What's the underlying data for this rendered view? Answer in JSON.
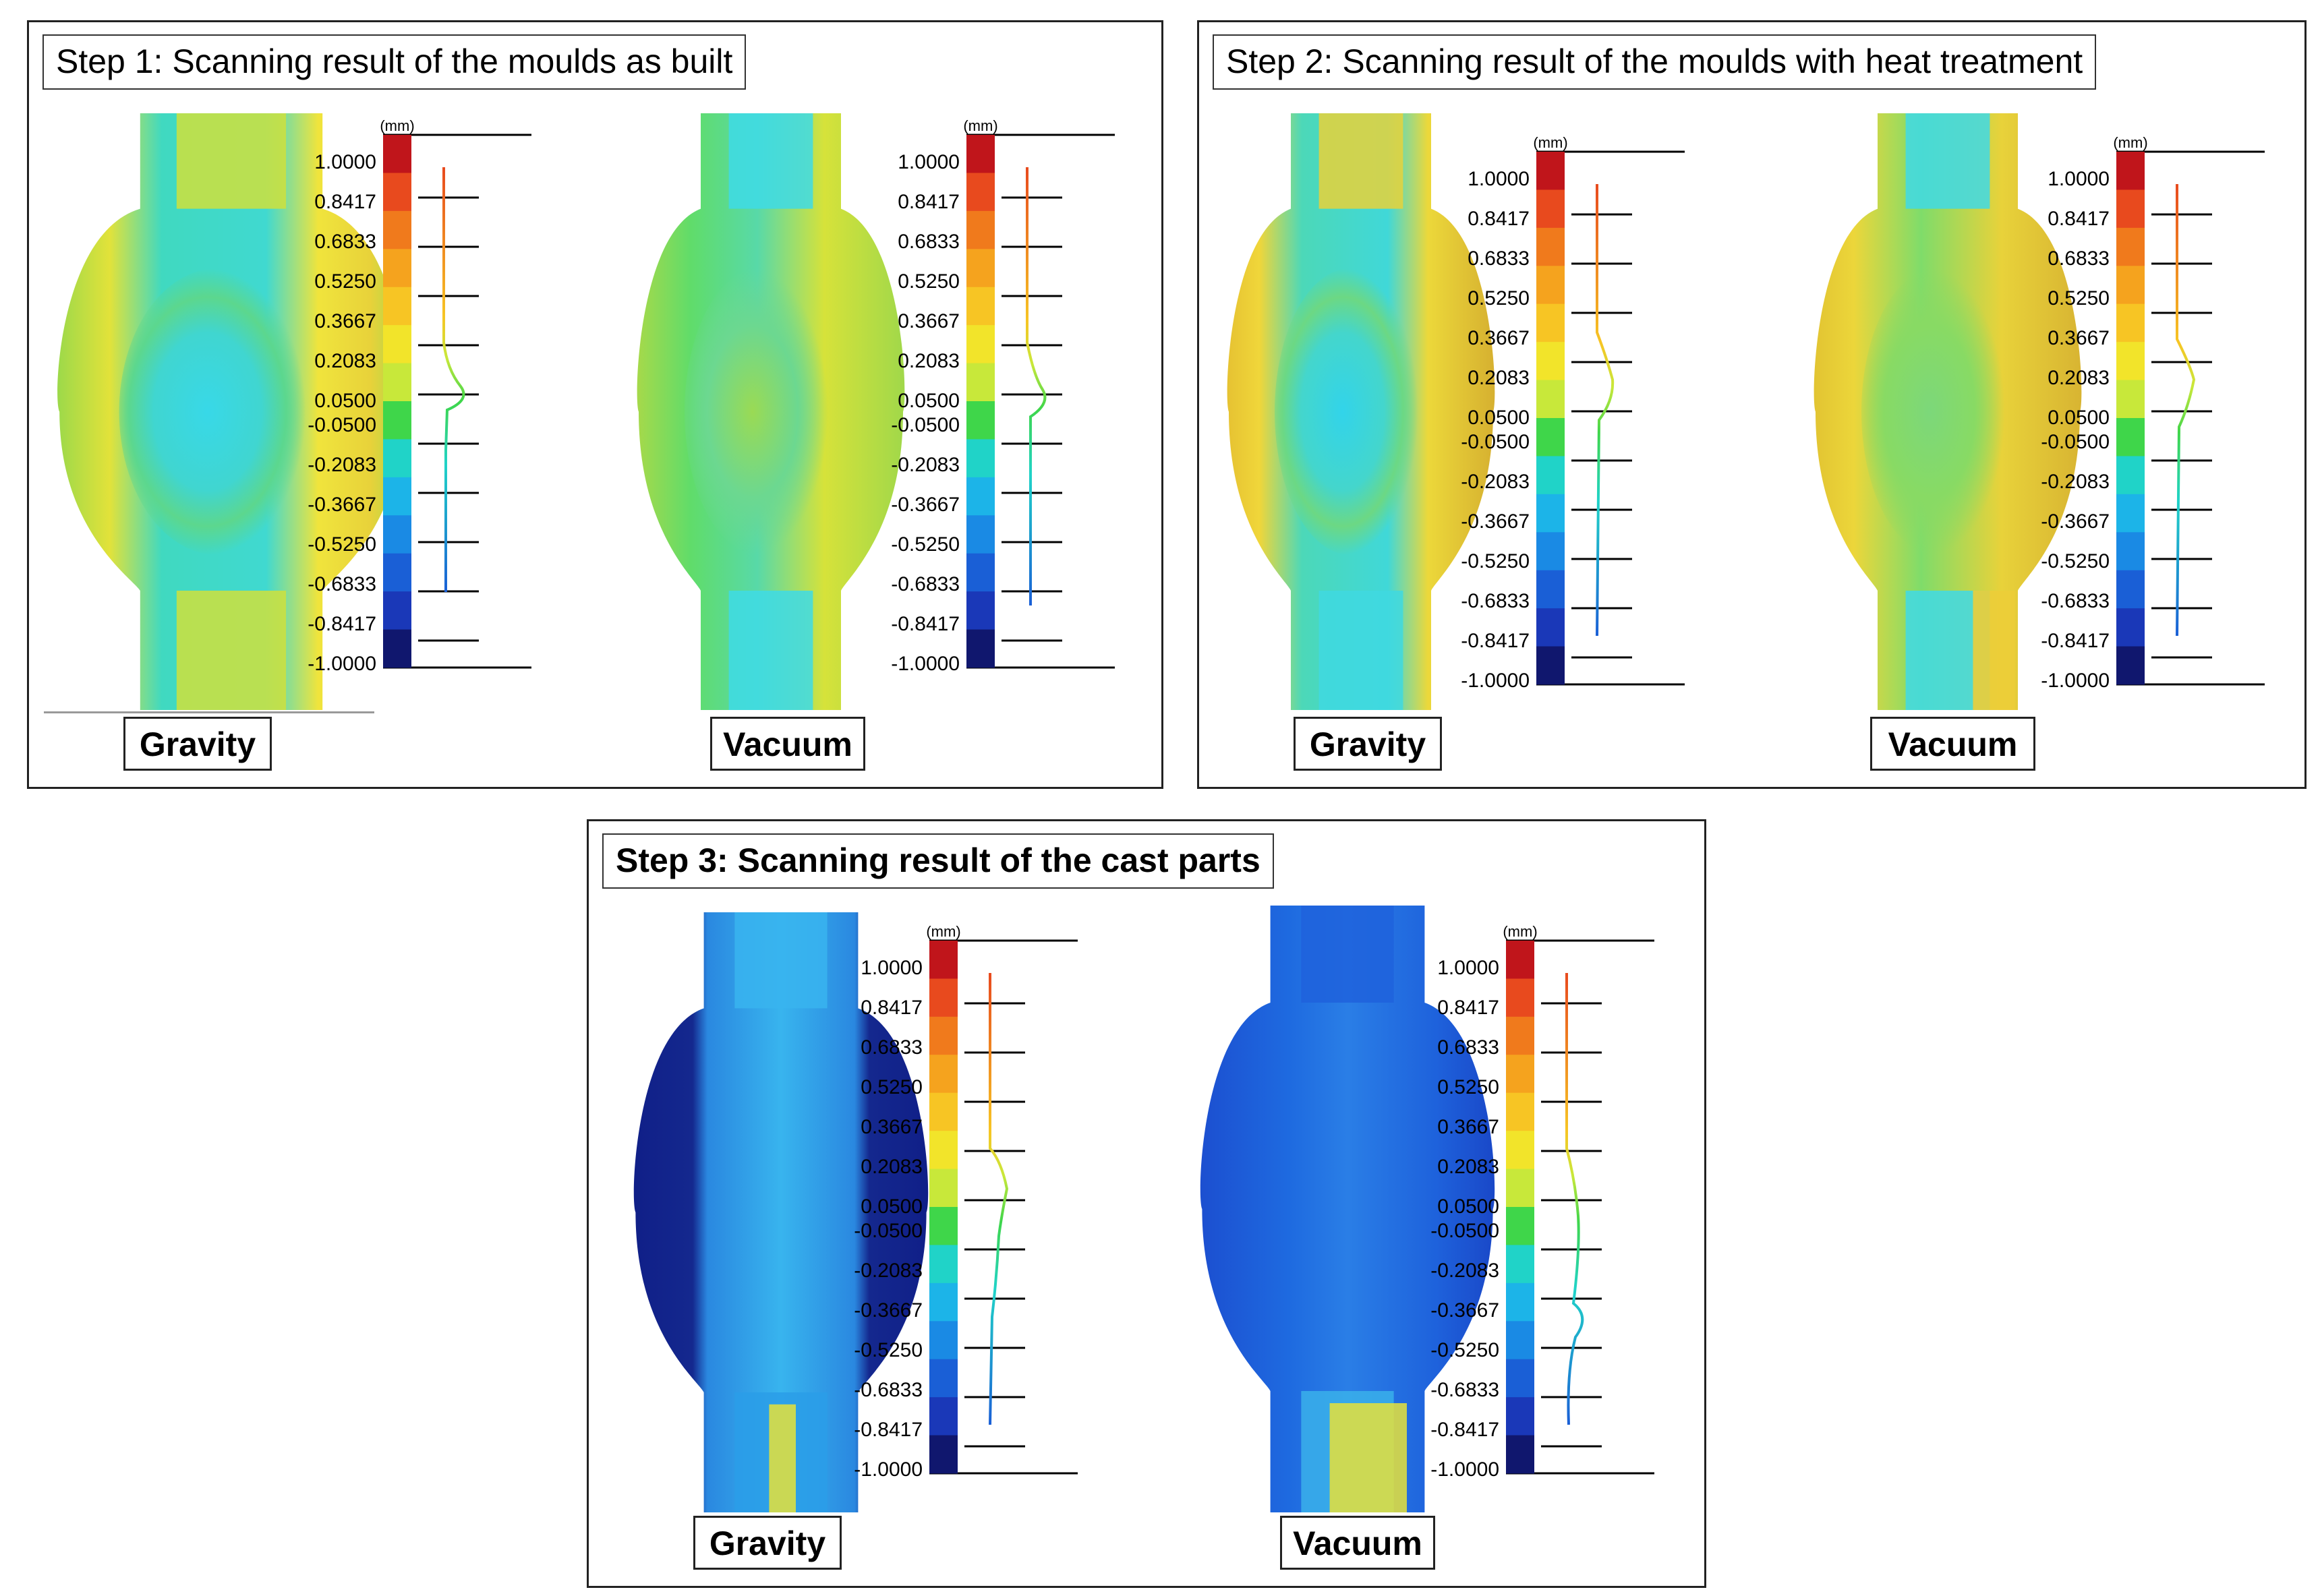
{
  "panels": [
    {
      "title": "Step 1: Scanning result of the moulds as built",
      "bold": false,
      "parts": [
        {
          "label": "Gravity",
          "style": "mould-gravity"
        },
        {
          "label": "Vacuum",
          "style": "mould-vacuum"
        }
      ]
    },
    {
      "title": "Step 2: Scanning result of the moulds with heat treatment",
      "bold": false,
      "parts": [
        {
          "label": "Gravity",
          "style": "mould-gravity-ht"
        },
        {
          "label": "Vacuum",
          "style": "mould-vacuum-ht"
        }
      ]
    },
    {
      "title": "Step 3: Scanning result of the cast parts",
      "bold": true,
      "parts": [
        {
          "label": "Gravity",
          "style": "cast-gravity"
        },
        {
          "label": "Vacuum",
          "style": "cast-vacuum"
        }
      ]
    }
  ],
  "scale": {
    "unit": "(mm)",
    "ticks": [
      "1.0000",
      "0.8417",
      "0.6833",
      "0.5250",
      "0.3667",
      "0.2083",
      "0.0500",
      "-0.0500",
      "-0.2083",
      "-0.3667",
      "-0.5250",
      "-0.6833",
      "-0.8417",
      "-1.0000"
    ],
    "colors": [
      "#c0151b",
      "#e84a1e",
      "#f07a1c",
      "#f5a31e",
      "#f7c524",
      "#f2e42a",
      "#c8e83a",
      "#3fd64a",
      "#20d3c8",
      "#1cb4e8",
      "#1a8ae4",
      "#1a5fd6",
      "#1a38b8",
      "#10176e"
    ]
  }
}
